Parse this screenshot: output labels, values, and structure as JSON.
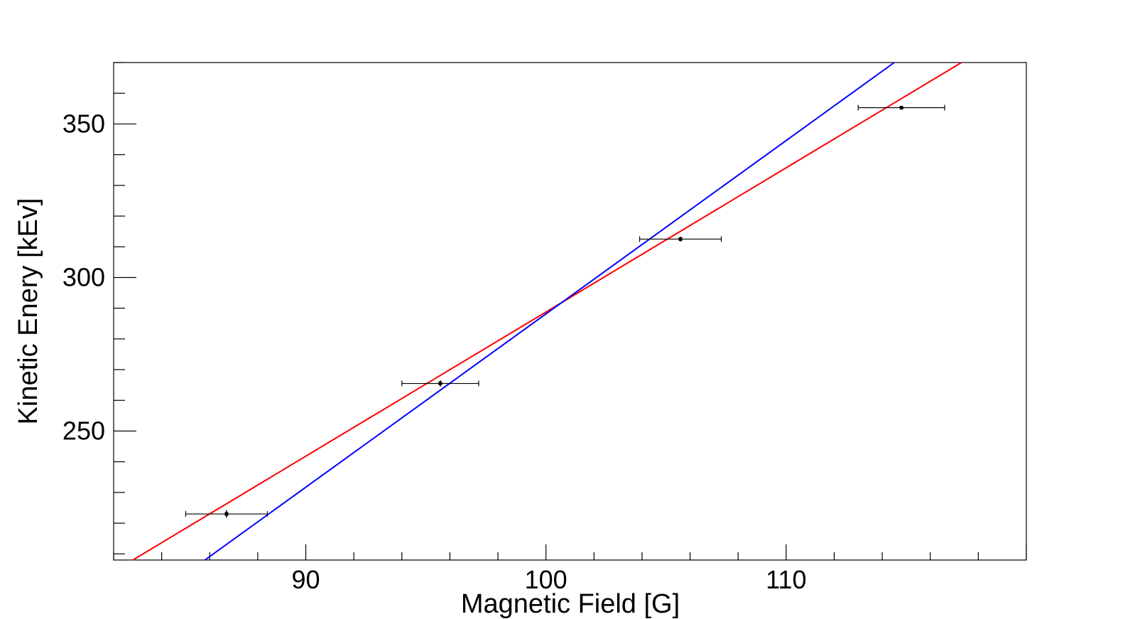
{
  "chart_data": {
    "type": "scatter",
    "title": "",
    "xlabel": "Magnetic Field [G]",
    "ylabel": "Kinetic Enery [kEv]",
    "xlim": [
      82,
      120
    ],
    "ylim": [
      208,
      370
    ],
    "x_major_ticks": [
      90,
      100,
      110
    ],
    "y_major_ticks": [
      250,
      300,
      350
    ],
    "x_tick_labels": [
      "90",
      "100",
      "110"
    ],
    "y_tick_labels": [
      "250",
      "300",
      "350"
    ],
    "grid": false,
    "legend": "none",
    "points": [
      {
        "x": 86.7,
        "y": 223.0,
        "xerr": 1.7,
        "yerr": 1.2
      },
      {
        "x": 95.6,
        "y": 265.5,
        "xerr": 1.6,
        "yerr": 1.0
      },
      {
        "x": 105.6,
        "y": 312.5,
        "xerr": 1.7,
        "yerr": 0.8
      },
      {
        "x": 114.8,
        "y": 355.3,
        "xerr": 1.8,
        "yerr": 0.6
      }
    ],
    "series": [
      {
        "color": "#ff0000",
        "x": [
          82.8,
          117.3
        ],
        "y": [
          208,
          370
        ]
      },
      {
        "color": "#0000ff",
        "x": [
          85.8,
          114.5
        ],
        "y": [
          208,
          370
        ]
      }
    ]
  }
}
